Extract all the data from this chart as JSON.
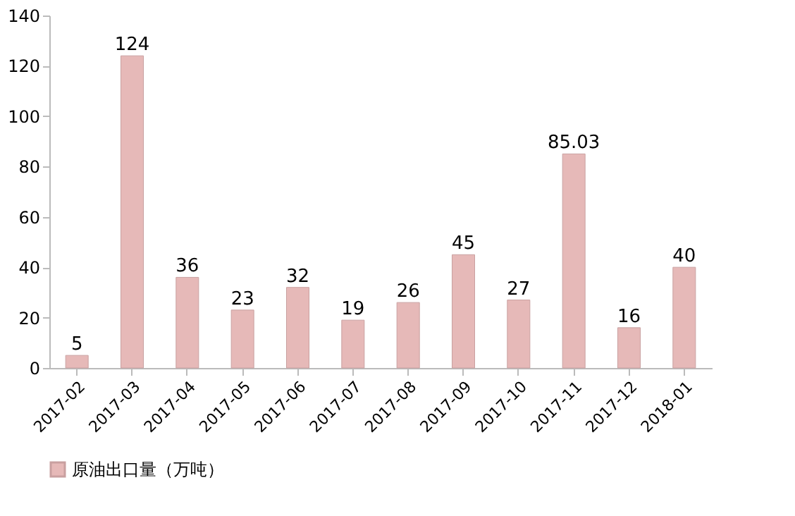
{
  "chart_data": {
    "type": "bar",
    "categories": [
      "2017-02",
      "2017-03",
      "2017-04",
      "2017-05",
      "2017-06",
      "2017-07",
      "2017-08",
      "2017-09",
      "2017-10",
      "2017-11",
      "2017-12",
      "2018-01"
    ],
    "series": [
      {
        "name": "原油出口量（万吨）",
        "color": "#e6b9b8",
        "values": [
          5,
          124,
          36,
          23,
          32,
          19,
          26,
          45,
          27,
          85.03,
          16,
          40
        ]
      }
    ],
    "ylim": [
      0,
      140
    ],
    "yticks": [
      0,
      20,
      40,
      60,
      80,
      100,
      120,
      140
    ],
    "data_labels": true,
    "legend": "bottom",
    "grid": false
  }
}
